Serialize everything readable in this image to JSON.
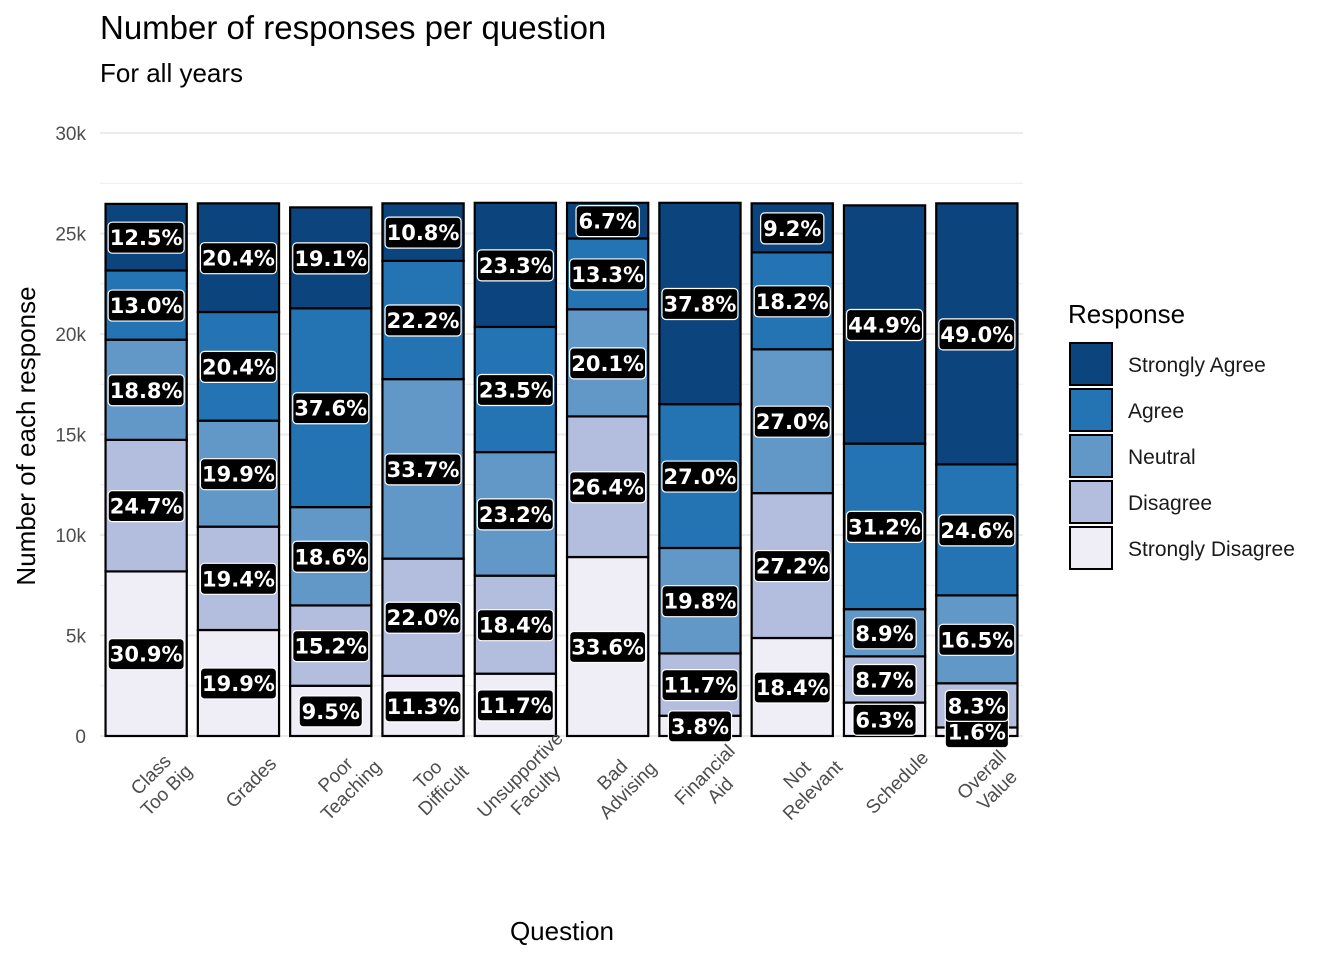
{
  "chart_data": {
    "type": "bar",
    "title": "Number of responses per question",
    "subtitle": "For all years",
    "xlabel": "Question",
    "ylabel": "Number of each response",
    "ylim": [
      0,
      30000
    ],
    "yticks": [
      0,
      5000,
      10000,
      15000,
      20000,
      25000,
      30000
    ],
    "ytick_labels": [
      "0",
      "5k",
      "10k",
      "15k",
      "20k",
      "25k",
      "30k"
    ],
    "categories": [
      [
        "Class",
        "Too Big"
      ],
      [
        "Grades"
      ],
      [
        "Poor",
        "Teaching"
      ],
      [
        "Too",
        "Difficult"
      ],
      [
        "Unsupportive",
        "Faculty"
      ],
      [
        "Bad",
        "Advising"
      ],
      [
        "Financial",
        "Aid"
      ],
      [
        "Not",
        "Relevant"
      ],
      [
        "Schedule"
      ],
      [
        "Overall",
        "Value"
      ]
    ],
    "totals": [
      26500,
      26500,
      26300,
      26500,
      26500,
      26500,
      26500,
      26500,
      26400,
      26500
    ],
    "legend_title": "Response",
    "legend_position": "right",
    "grid": true,
    "series": [
      {
        "name": "Strongly Disagree",
        "color": "#EFEDF5",
        "values": [
          30.9,
          19.9,
          9.5,
          11.3,
          11.7,
          33.6,
          3.8,
          18.4,
          6.3,
          1.6
        ],
        "labels": [
          "30.9%",
          "19.9%",
          "9.5%",
          "11.3%",
          "11.7%",
          "33.6%",
          "3.8%",
          "18.4%",
          "6.3%",
          "1.6%"
        ]
      },
      {
        "name": "Disagree",
        "color": "#B3BDDE",
        "values": [
          24.7,
          19.4,
          15.2,
          22.0,
          18.4,
          26.4,
          11.7,
          27.2,
          8.7,
          8.3
        ],
        "labels": [
          "24.7%",
          "19.4%",
          "15.2%",
          "22.0%",
          "18.4%",
          "26.4%",
          "11.7%",
          "27.2%",
          "8.7%",
          "8.3%"
        ]
      },
      {
        "name": "Neutral",
        "color": "#6198C8",
        "values": [
          18.8,
          19.9,
          18.6,
          33.7,
          23.2,
          20.1,
          19.8,
          27.0,
          8.9,
          16.5
        ],
        "labels": [
          "18.8%",
          "19.9%",
          "18.6%",
          "33.7%",
          "23.2%",
          "20.1%",
          "19.8%",
          "27.0%",
          "8.9%",
          "16.5%"
        ]
      },
      {
        "name": "Agree",
        "color": "#2474B4",
        "values": [
          13.0,
          20.4,
          37.6,
          22.2,
          23.5,
          13.3,
          27.0,
          18.2,
          31.2,
          24.6
        ],
        "labels": [
          "13.0%",
          "20.4%",
          "37.6%",
          "22.2%",
          "23.5%",
          "13.3%",
          "27.0%",
          "18.2%",
          "31.2%",
          "24.6%"
        ]
      },
      {
        "name": "Strongly Agree",
        "color": "#0C457D",
        "values": [
          12.5,
          20.4,
          19.1,
          10.8,
          23.3,
          6.7,
          37.8,
          9.2,
          44.9,
          49.0
        ],
        "labels": [
          "12.5%",
          "20.4%",
          "19.1%",
          "10.8%",
          "23.3%",
          "6.7%",
          "37.8%",
          "9.2%",
          "44.9%",
          "49.0%"
        ]
      }
    ],
    "legend_order": [
      "Strongly Agree",
      "Agree",
      "Neutral",
      "Disagree",
      "Strongly Disagree"
    ]
  }
}
